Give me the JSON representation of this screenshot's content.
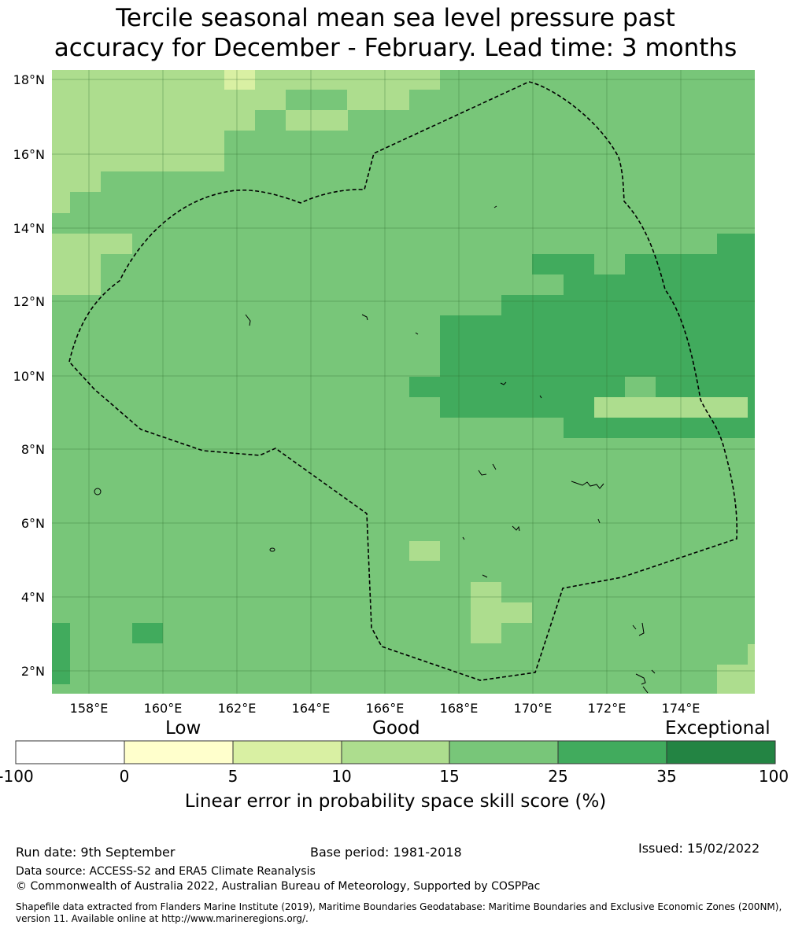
{
  "title_line1": "Tercile seasonal mean sea level pressure past",
  "title_line2": "accuracy for December - February. Lead time: 3 months",
  "map": {
    "lon_range": [
      156.98,
      175.8
    ],
    "lat_range": [
      1.45,
      18.3
    ],
    "x_ticks": [
      "158°E",
      "160°E",
      "162°E",
      "164°E",
      "166°E",
      "168°E",
      "170°E",
      "172°E",
      "174°E"
    ],
    "y_ticks": [
      "18°N",
      "16°N",
      "14°N",
      "12°N",
      "10°N",
      "8°N",
      "6°N",
      "4°N",
      "2°N"
    ],
    "boundary_style": "dashed black EEZ outline",
    "grid": true
  },
  "colorbar": {
    "words": {
      "low": "Low",
      "good": "Good",
      "exceptional": "Exceptional"
    },
    "bins": [
      {
        "from": "-100",
        "to": "0",
        "color": "#ffffff"
      },
      {
        "from": "0",
        "to": "5",
        "color": "#ffffcc"
      },
      {
        "from": "5",
        "to": "10",
        "color": "#d9f0a3"
      },
      {
        "from": "10",
        "to": "15",
        "color": "#addd8e"
      },
      {
        "from": "15",
        "to": "25",
        "color": "#78c679"
      },
      {
        "from": "25",
        "to": "35",
        "color": "#41ab5d"
      },
      {
        "from": "35",
        "to": "100",
        "color": "#238443"
      }
    ],
    "labels": [
      "-100",
      "0",
      "5",
      "10",
      "15",
      "25",
      "35",
      "100"
    ],
    "axis_label": "Linear error in probability space skill score (%)"
  },
  "footer": {
    "run_date": "Run date: 9th September",
    "base_period": "Base period: 1981-2018",
    "issued": "Issued: 15/02/2022",
    "data_source": "Data source: ACCESS-S2 and ERA5 Climate Reanalysis",
    "copyright": "© Commonwealth of Australia 2022, Australian Bureau of Meteorology, Supported by COSPPac",
    "shapefile_note": "Shapefile data extracted from Flanders Marine Institute (2019), Maritime Boundaries Geodatabase: Maritime Boundaries and Exclusive Economic Zones (200NM), version 11. Available online at http://www.marineregions.org/."
  }
}
